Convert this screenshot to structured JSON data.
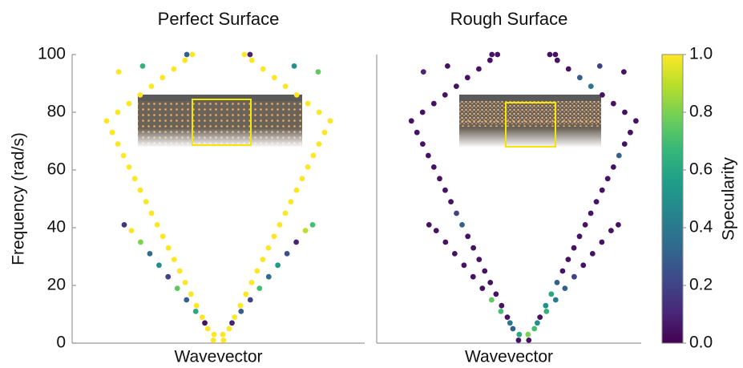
{
  "chart_data": [
    {
      "type": "scatter",
      "title": "Perfect Surface",
      "xlabel": "Wavevector",
      "ylabel": "Frequency (rad/s)",
      "xlim": [
        -1,
        1
      ],
      "ylim": [
        0,
        100
      ],
      "yticks": [
        0,
        20,
        40,
        60,
        80,
        100
      ],
      "x": [
        -0.035,
        -0.073,
        -0.111,
        -0.15,
        -0.188,
        -0.227,
        -0.265,
        -0.303,
        -0.342,
        -0.38,
        -0.419,
        -0.457,
        -0.495,
        -0.534,
        -0.572,
        -0.611,
        -0.649,
        -0.687,
        -0.726,
        -0.764,
        -0.688,
        -0.611,
        -0.535,
        -0.458,
        -0.382,
        -0.305,
        -0.229,
        -0.178,
        -0.03,
        -0.093,
        -0.155,
        -0.218,
        -0.281,
        -0.344,
        -0.406,
        -0.469,
        -0.532,
        -0.595,
        -0.644,
        -0.682,
        -0.518,
        -0.216,
        0.035,
        0.073,
        0.111,
        0.15,
        0.188,
        0.227,
        0.265,
        0.303,
        0.342,
        0.38,
        0.419,
        0.457,
        0.495,
        0.534,
        0.572,
        0.611,
        0.649,
        0.687,
        0.726,
        0.764,
        0.688,
        0.611,
        0.535,
        0.458,
        0.382,
        0.305,
        0.229,
        0.178,
        0.03,
        0.093,
        0.155,
        0.218,
        0.281,
        0.344,
        0.406,
        0.469,
        0.532,
        0.595,
        0.644,
        0.682,
        0.518,
        0.216
      ],
      "values": [
        1,
        5,
        9,
        13,
        17,
        21,
        25,
        29,
        33,
        37,
        41,
        45,
        49,
        53,
        57,
        61,
        65,
        69,
        73,
        77,
        80,
        83,
        86,
        89,
        92,
        95,
        98,
        100,
        3,
        7,
        11,
        15,
        19,
        23,
        27,
        31,
        35,
        39,
        41,
        94,
        96,
        100,
        1,
        5,
        9,
        13,
        17,
        21,
        25,
        29,
        33,
        37,
        41,
        45,
        49,
        53,
        57,
        61,
        65,
        69,
        73,
        77,
        80,
        83,
        86,
        89,
        92,
        95,
        98,
        100,
        3,
        7,
        11,
        15,
        19,
        23,
        27,
        31,
        35,
        39,
        41,
        94,
        96,
        100
      ],
      "specularity": [
        1,
        1,
        1,
        1,
        1,
        1,
        1,
        1,
        1,
        1,
        1,
        1,
        1,
        1,
        1,
        1,
        1,
        1,
        1,
        1,
        1,
        1,
        1,
        1,
        1,
        1,
        1,
        1,
        1,
        0.05,
        0.6,
        0.3,
        0.75,
        0.2,
        0.5,
        0.35,
        0.8,
        1,
        0.15,
        1,
        0.65,
        0.3,
        1,
        1,
        1,
        1,
        1,
        1,
        1,
        1,
        1,
        1,
        1,
        1,
        1,
        1,
        1,
        1,
        1,
        1,
        1,
        1,
        1,
        1,
        1,
        1,
        1,
        1,
        1,
        1,
        1,
        0.1,
        0.3,
        0.2,
        0.7,
        0.35,
        0.55,
        0.25,
        0.1,
        0.9,
        0.7,
        0.75,
        0.5,
        0.1
      ]
    },
    {
      "type": "scatter",
      "title": "Rough Surface",
      "xlabel": "Wavevector",
      "xlim": [
        -1,
        0.8
      ],
      "ylim": [
        0,
        100
      ],
      "x": [
        -0.035,
        -0.073,
        -0.111,
        -0.15,
        -0.188,
        -0.227,
        -0.265,
        -0.303,
        -0.342,
        -0.38,
        -0.419,
        -0.457,
        -0.495,
        -0.534,
        -0.572,
        -0.611,
        -0.649,
        -0.687,
        -0.726,
        -0.764,
        -0.688,
        -0.611,
        -0.535,
        -0.458,
        -0.382,
        -0.305,
        -0.229,
        -0.178,
        -0.03,
        -0.093,
        -0.155,
        -0.218,
        -0.281,
        -0.344,
        -0.406,
        -0.469,
        -0.532,
        -0.595,
        -0.644,
        -0.682,
        -0.518,
        -0.216,
        0.035,
        0.073,
        0.111,
        0.15,
        0.188,
        0.227,
        0.265,
        0.303,
        0.342,
        0.38,
        0.419,
        0.457,
        0.495,
        0.534,
        0.572,
        0.611,
        0.649,
        0.687,
        0.726,
        0.764,
        0.688,
        0.611,
        0.535,
        0.458,
        0.382,
        0.305,
        0.229,
        0.178,
        0.03,
        0.093,
        0.155,
        0.218,
        0.281,
        0.344,
        0.406,
        0.469,
        0.532,
        0.595,
        0.644,
        0.682,
        0.518,
        0.216
      ],
      "values": [
        1,
        5,
        9,
        13,
        17,
        21,
        25,
        29,
        33,
        37,
        41,
        45,
        49,
        53,
        57,
        61,
        65,
        69,
        73,
        77,
        80,
        83,
        86,
        89,
        92,
        95,
        98,
        100,
        3,
        7,
        11,
        15,
        19,
        23,
        27,
        31,
        35,
        39,
        41,
        94,
        96,
        100,
        1,
        5,
        9,
        13,
        17,
        21,
        25,
        29,
        33,
        37,
        41,
        45,
        49,
        53,
        57,
        61,
        65,
        69,
        73,
        77,
        80,
        83,
        86,
        89,
        92,
        95,
        98,
        100,
        3,
        7,
        11,
        15,
        19,
        23,
        27,
        31,
        35,
        39,
        41,
        94,
        96,
        100
      ],
      "specularity": [
        0.05,
        0.3,
        0.05,
        0.05,
        0.05,
        0.05,
        0.05,
        0.05,
        0.05,
        0.05,
        0.3,
        0.2,
        0.05,
        0.05,
        0.05,
        0.05,
        0.05,
        0.05,
        0.05,
        0.05,
        0.05,
        0.05,
        0.05,
        0.05,
        0.05,
        0.05,
        0.05,
        0.05,
        0.6,
        0.4,
        0.7,
        0.75,
        0.05,
        0.05,
        0.05,
        0.05,
        0.05,
        0.05,
        0.05,
        0.1,
        0.05,
        0.05,
        0.05,
        0.7,
        0.05,
        0.5,
        0.6,
        0.3,
        0.05,
        0.05,
        0.05,
        0.05,
        0.05,
        0.05,
        0.05,
        0.05,
        0.05,
        0.05,
        0.3,
        0.05,
        0.05,
        0.05,
        0.05,
        0.05,
        0.05,
        0.4,
        0.3,
        0.05,
        0.05,
        0.05,
        0.8,
        0.5,
        0.65,
        0.4,
        0.3,
        0.2,
        0.05,
        0.05,
        0.05,
        0.05,
        0.05,
        0.05,
        0.2,
        0.05
      ]
    },
    {
      "type": "colorbar",
      "label": "Specularity",
      "lim": [
        0,
        1
      ],
      "ticks": [
        {
          "value": 0,
          "label": "0.0"
        },
        {
          "value": 0.2,
          "label": "0.2"
        },
        {
          "value": 0.4,
          "label": "0.4"
        },
        {
          "value": 0.6,
          "label": "0.6"
        },
        {
          "value": 0.8,
          "label": "0.8"
        },
        {
          "value": 1,
          "label": "1.0"
        }
      ]
    }
  ]
}
